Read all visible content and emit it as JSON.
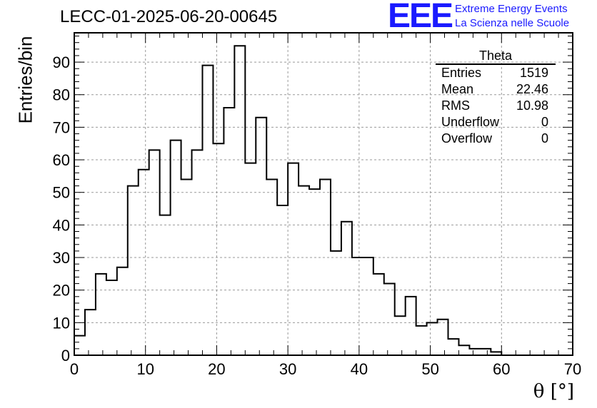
{
  "title": "LECC-01-2025-06-20-00645",
  "logo": {
    "mark": "EEE",
    "line1": "Extreme Energy Events",
    "line2": "La Scienza nelle Scuole",
    "color": "#1a1aff"
  },
  "stats_box": {
    "title": "Theta",
    "rows": [
      {
        "label": "Entries",
        "value": "1519"
      },
      {
        "label": "Mean",
        "value": "22.46"
      },
      {
        "label": "RMS",
        "value": "10.98"
      },
      {
        "label": "Underflow",
        "value": "0"
      },
      {
        "label": "Overflow",
        "value": "0"
      }
    ]
  },
  "chart_data": {
    "type": "bar",
    "histogram": true,
    "xlabel": "θ [°]",
    "ylabel": "Entries/bin",
    "xlim": [
      0,
      70
    ],
    "ylim": [
      0,
      99
    ],
    "grid": true,
    "legend": "top-right",
    "bin_width": 1.5,
    "bin_edges_start": 0,
    "values": [
      6,
      14,
      25,
      23,
      27,
      52,
      57,
      63,
      43,
      66,
      54,
      63,
      89,
      65,
      76,
      95,
      59,
      73,
      54,
      46,
      59,
      52,
      51,
      54,
      32,
      41,
      30,
      30,
      25,
      22,
      12,
      18,
      9,
      10,
      11,
      5,
      3,
      2,
      2,
      1,
      0
    ],
    "x_ticks": [
      "0",
      "10",
      "20",
      "30",
      "40",
      "50",
      "60",
      "70"
    ],
    "y_ticks": [
      "0",
      "10",
      "20",
      "30",
      "40",
      "50",
      "60",
      "70",
      "80",
      "90"
    ]
  }
}
